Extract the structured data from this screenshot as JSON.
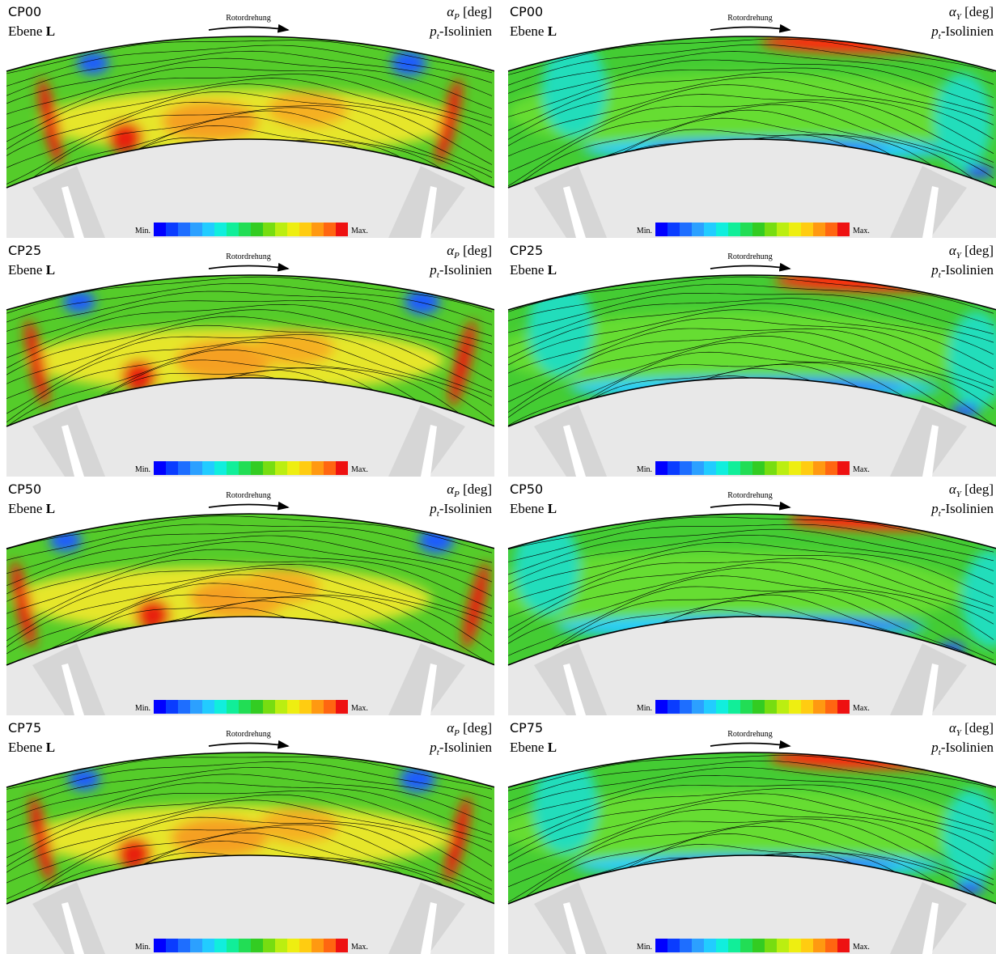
{
  "panels": [
    {
      "label": "CP00",
      "plane": {
        "text": "Ebene",
        "id": "L"
      },
      "rotation": "Rotordrehung",
      "quantity": {
        "symbol": "α",
        "subscript": "P",
        "unit": "[deg]"
      },
      "isolines": {
        "symbol": "p",
        "subscript": "t",
        "text": "-Isolinien"
      },
      "colorbar": {
        "min": "Min.",
        "max": "Max."
      }
    },
    {
      "label": "CP00",
      "plane": {
        "text": "Ebene",
        "id": "L"
      },
      "rotation": "Rotordrehung",
      "quantity": {
        "symbol": "α",
        "subscript": "Y",
        "unit": "[deg]"
      },
      "isolines": {
        "symbol": "p",
        "subscript": "t",
        "text": "-Isolinien"
      },
      "colorbar": {
        "min": "Min.",
        "max": "Max."
      }
    },
    {
      "label": "CP25",
      "plane": {
        "text": "Ebene",
        "id": "L"
      },
      "rotation": "Rotordrehung",
      "quantity": {
        "symbol": "α",
        "subscript": "P",
        "unit": "[deg]"
      },
      "isolines": {
        "symbol": "p",
        "subscript": "t",
        "text": "-Isolinien"
      },
      "colorbar": {
        "min": "Min.",
        "max": "Max."
      }
    },
    {
      "label": "CP25",
      "plane": {
        "text": "Ebene",
        "id": "L"
      },
      "rotation": "Rotordrehung",
      "quantity": {
        "symbol": "α",
        "subscript": "Y",
        "unit": "[deg]"
      },
      "isolines": {
        "symbol": "p",
        "subscript": "t",
        "text": "-Isolinien"
      },
      "colorbar": {
        "min": "Min.",
        "max": "Max."
      }
    },
    {
      "label": "CP50",
      "plane": {
        "text": "Ebene",
        "id": "L"
      },
      "rotation": "Rotordrehung",
      "quantity": {
        "symbol": "α",
        "subscript": "P",
        "unit": "[deg]"
      },
      "isolines": {
        "symbol": "p",
        "subscript": "t",
        "text": "-Isolinien"
      },
      "colorbar": {
        "min": "Min.",
        "max": "Max."
      }
    },
    {
      "label": "CP50",
      "plane": {
        "text": "Ebene",
        "id": "L"
      },
      "rotation": "Rotordrehung",
      "quantity": {
        "symbol": "α",
        "subscript": "Y",
        "unit": "[deg]"
      },
      "isolines": {
        "symbol": "p",
        "subscript": "t",
        "text": "-Isolinien"
      },
      "colorbar": {
        "min": "Min.",
        "max": "Max."
      }
    },
    {
      "label": "CP75",
      "plane": {
        "text": "Ebene",
        "id": "L"
      },
      "rotation": "Rotordrehung",
      "quantity": {
        "symbol": "α",
        "subscript": "P",
        "unit": "[deg]"
      },
      "isolines": {
        "symbol": "p",
        "subscript": "t",
        "text": "-Isolinien"
      },
      "colorbar": {
        "min": "Min.",
        "max": "Max."
      }
    },
    {
      "label": "CP75",
      "plane": {
        "text": "Ebene",
        "id": "L"
      },
      "rotation": "Rotordrehung",
      "quantity": {
        "symbol": "α",
        "subscript": "Y",
        "unit": "[deg]"
      },
      "isolines": {
        "symbol": "p",
        "subscript": "t",
        "text": "-Isolinien"
      },
      "colorbar": {
        "min": "Min.",
        "max": "Max."
      }
    }
  ]
}
